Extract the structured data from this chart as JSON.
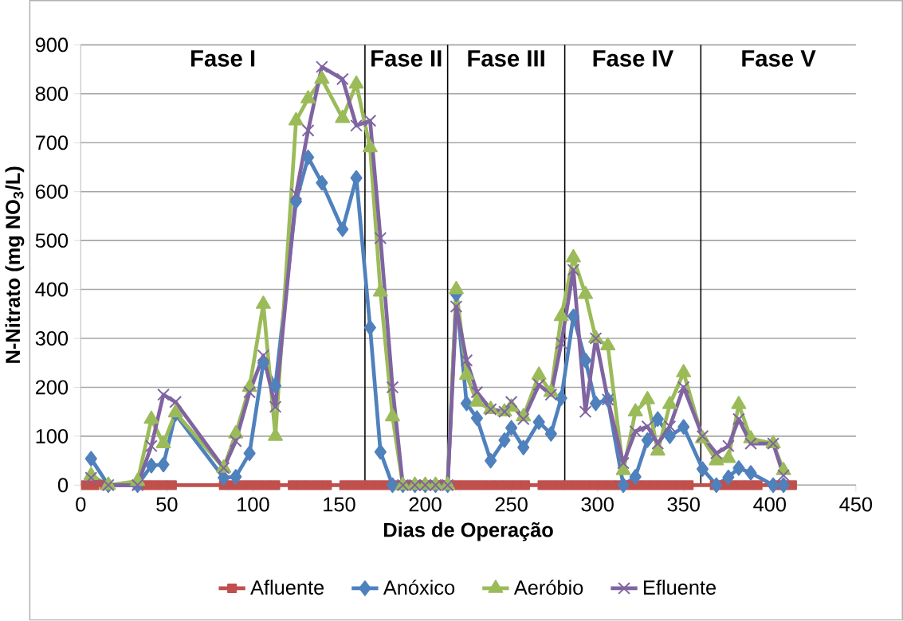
{
  "chart_data": {
    "type": "line",
    "xlabel": "Dias de Operação",
    "ylabel": "N-Nitrato (mg NO$_{3}$/L)",
    "xlim": [
      0,
      450
    ],
    "xticks": [
      0,
      50,
      100,
      150,
      200,
      250,
      300,
      350,
      400,
      450
    ],
    "ylim": [
      0,
      900
    ],
    "yticks": [
      0,
      100,
      200,
      300,
      400,
      500,
      600,
      700,
      800,
      900
    ],
    "grid": "y",
    "legend": "bottom",
    "line_style": "solid",
    "ref_lines": [
      {
        "axis": "x",
        "value": 165,
        "color": "#000000"
      },
      {
        "axis": "x",
        "value": 213,
        "color": "#000000"
      },
      {
        "axis": "x",
        "value": 281,
        "color": "#000000"
      },
      {
        "axis": "x",
        "value": 360,
        "color": "#000000"
      }
    ],
    "annotations": [
      "Fase I",
      "Fase II",
      "Fase III",
      "Fase IV",
      "Fase V"
    ],
    "series": [
      {
        "name": "Afluente",
        "color": "#c0504d",
        "marker": "square",
        "x": [
          3,
          8,
          14,
          33,
          38,
          43,
          48,
          53,
          83,
          88,
          93,
          98,
          103,
          108,
          113,
          123,
          128,
          133,
          138,
          143,
          153,
          158,
          163,
          168,
          173,
          178,
          183,
          188,
          193,
          198,
          203,
          208,
          213,
          218,
          223,
          228,
          233,
          238,
          243,
          248,
          253,
          258,
          268,
          273,
          278,
          283,
          288,
          293,
          298,
          303,
          308,
          313,
          318,
          323,
          328,
          333,
          338,
          343,
          348,
          353,
          368,
          373,
          378,
          383,
          388,
          393,
          403,
          408,
          413
        ],
        "values": [
          0,
          0,
          0,
          0,
          0,
          0,
          0,
          0,
          0,
          0,
          0,
          0,
          0,
          0,
          0,
          0,
          0,
          0,
          0,
          0,
          0,
          0,
          0,
          0,
          0,
          0,
          0,
          0,
          0,
          0,
          0,
          0,
          0,
          0,
          0,
          0,
          0,
          0,
          0,
          0,
          0,
          0,
          0,
          0,
          0,
          0,
          0,
          0,
          0,
          0,
          0,
          0,
          0,
          0,
          0,
          0,
          0,
          0,
          0,
          0,
          0,
          0,
          0,
          0,
          0,
          0,
          0,
          0,
          0
        ]
      },
      {
        "name": "Anóxico",
        "color": "#4f81bd",
        "marker": "diamond",
        "x": [
          6,
          16,
          33,
          41,
          48,
          55,
          83,
          90,
          98,
          106,
          113,
          125,
          132,
          140,
          152,
          160,
          168,
          174,
          181,
          187,
          194,
          200,
          206,
          213,
          218,
          224,
          230,
          238,
          246,
          250,
          257,
          266,
          273,
          279,
          286,
          293,
          299,
          306,
          315,
          322,
          329,
          335,
          342,
          350,
          361,
          369,
          376,
          382,
          389,
          402,
          408
        ],
        "values": [
          54,
          0,
          0,
          40,
          42,
          145,
          15,
          17,
          65,
          250,
          203,
          580,
          670,
          618,
          523,
          628,
          322,
          68,
          0,
          0,
          0,
          0,
          0,
          0,
          390,
          167,
          137,
          50,
          92,
          117,
          77,
          129,
          105,
          178,
          345,
          255,
          167,
          175,
          0,
          17,
          92,
          135,
          100,
          119,
          33,
          0,
          16,
          35,
          25,
          0,
          0
        ]
      },
      {
        "name": "Aeróbio",
        "color": "#9bbb59",
        "marker": "triangle",
        "x": [
          6,
          16,
          33,
          41,
          48,
          55,
          83,
          90,
          98,
          106,
          113,
          125,
          132,
          140,
          152,
          160,
          168,
          174,
          181,
          187,
          194,
          200,
          206,
          213,
          218,
          224,
          230,
          238,
          246,
          250,
          257,
          266,
          273,
          279,
          286,
          293,
          299,
          306,
          315,
          322,
          329,
          335,
          342,
          350,
          361,
          369,
          376,
          382,
          389,
          402,
          408
        ],
        "values": [
          20,
          0,
          8,
          135,
          85,
          148,
          35,
          105,
          200,
          370,
          100,
          745,
          790,
          830,
          750,
          820,
          690,
          395,
          140,
          0,
          0,
          0,
          0,
          0,
          400,
          225,
          170,
          155,
          150,
          160,
          140,
          225,
          190,
          345,
          465,
          390,
          300,
          285,
          30,
          150,
          175,
          70,
          165,
          230,
          95,
          50,
          55,
          165,
          95,
          85,
          30
        ]
      },
      {
        "name": "Efluente",
        "color": "#8064a2",
        "marker": "cross",
        "x": [
          6,
          16,
          33,
          41,
          48,
          55,
          83,
          90,
          98,
          106,
          113,
          125,
          132,
          140,
          152,
          160,
          168,
          174,
          181,
          187,
          194,
          200,
          206,
          213,
          218,
          224,
          230,
          238,
          246,
          250,
          257,
          266,
          273,
          279,
          286,
          293,
          299,
          306,
          315,
          322,
          329,
          335,
          342,
          350,
          361,
          369,
          376,
          382,
          389,
          402,
          408
        ],
        "values": [
          15,
          0,
          0,
          80,
          185,
          170,
          35,
          90,
          190,
          265,
          160,
          595,
          725,
          855,
          830,
          735,
          745,
          505,
          200,
          0,
          0,
          0,
          0,
          0,
          365,
          255,
          190,
          155,
          150,
          170,
          135,
          205,
          185,
          290,
          440,
          150,
          300,
          175,
          45,
          110,
          120,
          85,
          120,
          200,
          100,
          65,
          80,
          135,
          85,
          85,
          20
        ]
      }
    ]
  }
}
